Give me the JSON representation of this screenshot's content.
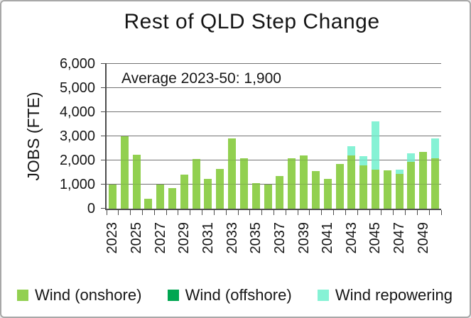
{
  "chart_data": {
    "type": "bar",
    "stacked": true,
    "title": "Rest of QLD Step Change",
    "ylabel": "JOBS (FTE)",
    "xlabel": "",
    "annotation": "Average 2023-50: 1,900",
    "ylim": [
      0,
      6000
    ],
    "ytick_step": 1000,
    "ytick_labels": [
      "0",
      "1,000",
      "2,000",
      "3,000",
      "4,000",
      "5,000",
      "6,000"
    ],
    "x": [
      2023,
      2024,
      2025,
      2026,
      2027,
      2028,
      2029,
      2030,
      2031,
      2032,
      2033,
      2034,
      2035,
      2036,
      2037,
      2038,
      2039,
      2040,
      2041,
      2042,
      2043,
      2044,
      2045,
      2046,
      2047,
      2048,
      2049,
      2050
    ],
    "xtick_labels": [
      "2023",
      "2025",
      "2027",
      "2029",
      "2031",
      "2033",
      "2035",
      "2037",
      "2039",
      "2041",
      "2043",
      "2045",
      "2047",
      "2049"
    ],
    "grid": true,
    "legend_position": "bottom",
    "series": [
      {
        "name": "Wind (onshore)",
        "color": "#92D050",
        "values": [
          1000,
          3000,
          2250,
          400,
          1000,
          850,
          1400,
          2050,
          1250,
          1650,
          2900,
          2100,
          1050,
          1000,
          1350,
          2100,
          2200,
          1550,
          1250,
          1850,
          2200,
          1800,
          1620,
          1580,
          1440,
          1950,
          2350,
          2100
        ]
      },
      {
        "name": "Wind (offshore)",
        "color": "#00A651",
        "values": [
          0,
          0,
          0,
          0,
          0,
          0,
          0,
          0,
          0,
          0,
          0,
          0,
          0,
          0,
          0,
          0,
          0,
          0,
          0,
          0,
          0,
          0,
          0,
          0,
          0,
          0,
          0,
          0
        ]
      },
      {
        "name": "Wind repowering",
        "color": "#86F2D5",
        "values": [
          0,
          0,
          0,
          0,
          0,
          0,
          0,
          0,
          0,
          0,
          0,
          0,
          0,
          0,
          0,
          0,
          0,
          0,
          0,
          0,
          400,
          380,
          2000,
          0,
          170,
          350,
          0,
          800
        ]
      }
    ]
  }
}
